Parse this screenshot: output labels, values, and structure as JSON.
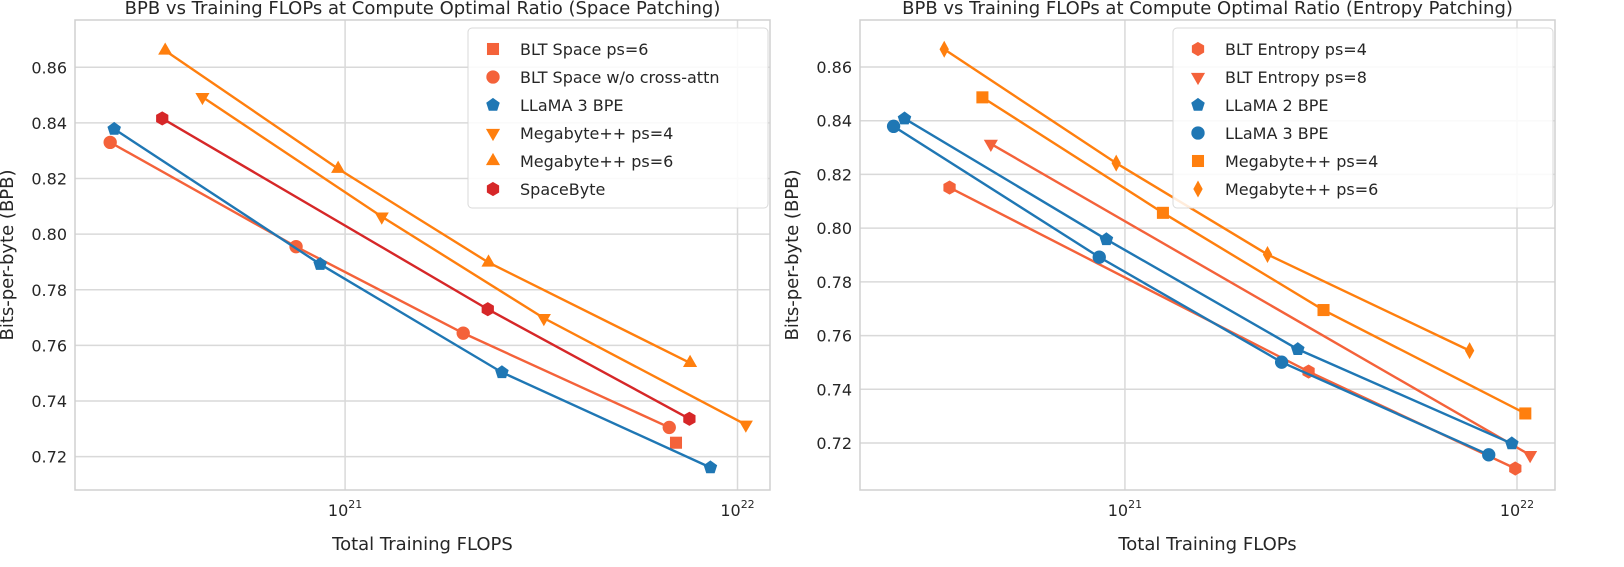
{
  "chart_data": [
    {
      "type": "line",
      "title": "BPB vs Training FLOPs at Compute Optimal Ratio (Space Patching)",
      "xlabel": "Total Training FLOPS",
      "ylabel": "Bits-per-byte (BPB)",
      "xscale": "log",
      "xlim": [
        2.05e+20,
        1.21e+22
      ],
      "ylim": [
        0.708,
        0.877
      ],
      "xticks": [
        {
          "value": 1e+21,
          "base": "10",
          "exp": "21"
        },
        {
          "value": 1e+22,
          "base": "10",
          "exp": "22"
        }
      ],
      "yticks": [
        "0.72",
        "0.74",
        "0.76",
        "0.78",
        "0.80",
        "0.82",
        "0.84",
        "0.86"
      ],
      "grid": true,
      "legend_position": "top-right",
      "series": [
        {
          "name": "BLT Space ps=6",
          "color": "#f4623a",
          "marker": "square",
          "x": [
            6.97e+21
          ],
          "y": [
            0.725
          ]
        },
        {
          "name": "BLT Space w/o cross-attn",
          "color": "#f4623a",
          "marker": "circle",
          "x": [
            2.52e+20,
            7.5e+20,
            2e+21,
            6.7e+21
          ],
          "y": [
            0.833,
            0.7955,
            0.7644,
            0.7305
          ]
        },
        {
          "name": "LLaMA 3 BPE",
          "color": "#1f77b4",
          "marker": "pentagon",
          "x": [
            2.58e+20,
            8.64e+20,
            2.51e+21,
            8.53e+21
          ],
          "y": [
            0.8378,
            0.7892,
            0.7503,
            0.7161
          ]
        },
        {
          "name": "Megabyte++ ps=4",
          "color": "#ff7f0e",
          "marker": "triangle-down",
          "x": [
            4.33e+20,
            1.24e+21,
            3.21e+21,
            1.05e+22
          ],
          "y": [
            0.8493,
            0.8063,
            0.7698,
            0.7315
          ]
        },
        {
          "name": "Megabyte++ ps=6",
          "color": "#ff7f0e",
          "marker": "triangle-up",
          "x": [
            3.48e+20,
            9.6e+20,
            2.32e+21,
            7.57e+21
          ],
          "y": [
            0.866,
            0.8235,
            0.7898,
            0.7537
          ]
        },
        {
          "name": "SpaceByte",
          "color": "#d62728",
          "marker": "hexagon",
          "x": [
            3.42e+20,
            2.31e+21,
            7.54e+21
          ],
          "y": [
            0.8416,
            0.773,
            0.7336
          ]
        }
      ]
    },
    {
      "type": "line",
      "title": "BPB vs Training FLOPs at Compute Optimal Ratio (Entropy Patching)",
      "xlabel": "Total Training FLOPs",
      "ylabel": "Bits-per-byte (BPB)",
      "xscale": "log",
      "xlim": [
        2.11e+20,
        1.25e+22
      ],
      "ylim": [
        0.7025,
        0.8775
      ],
      "xticks": [
        {
          "value": 1e+21,
          "base": "10",
          "exp": "21"
        },
        {
          "value": 1e+22,
          "base": "10",
          "exp": "22"
        }
      ],
      "yticks": [
        "0.72",
        "0.74",
        "0.76",
        "0.78",
        "0.80",
        "0.82",
        "0.84",
        "0.86"
      ],
      "grid": true,
      "legend_position": "top-right",
      "series": [
        {
          "name": "BLT Entropy ps=4",
          "color": "#f4623a",
          "marker": "hexagon",
          "x": [
            3.57e+20,
            2.94e+21,
            9.9e+21
          ],
          "y": [
            0.8151,
            0.7466,
            0.7105
          ]
        },
        {
          "name": "BLT Entropy ps=8",
          "color": "#f4623a",
          "marker": "triangle-down",
          "x": [
            4.55e+20,
            1.08e+22
          ],
          "y": [
            0.8314,
            0.7155
          ]
        },
        {
          "name": "LLaMA 2 BPE",
          "color": "#1f77b4",
          "marker": "pentagon",
          "x": [
            2.74e+20,
            8.97e+20,
            2.76e+21,
            9.7e+21
          ],
          "y": [
            0.8408,
            0.7958,
            0.7549,
            0.7198
          ]
        },
        {
          "name": "LLaMA 3 BPE",
          "color": "#1f77b4",
          "marker": "circle",
          "x": [
            2.57e+20,
            8.6e+20,
            2.51e+21,
            8.47e+21
          ],
          "y": [
            0.8379,
            0.7892,
            0.7501,
            0.7156
          ]
        },
        {
          "name": "Megabyte++ ps=4",
          "color": "#ff7f0e",
          "marker": "square",
          "x": [
            4.33e+20,
            1.25e+21,
            3.21e+21,
            1.05e+22
          ],
          "y": [
            0.8487,
            0.8057,
            0.7695,
            0.731
          ]
        },
        {
          "name": "Megabyte++ ps=6",
          "color": "#ff7f0e",
          "marker": "diamond",
          "x": [
            3.46e+20,
            9.5e+20,
            2.31e+21,
            7.57e+21
          ],
          "y": [
            0.8666,
            0.8242,
            0.7902,
            0.7544
          ]
        }
      ]
    }
  ]
}
